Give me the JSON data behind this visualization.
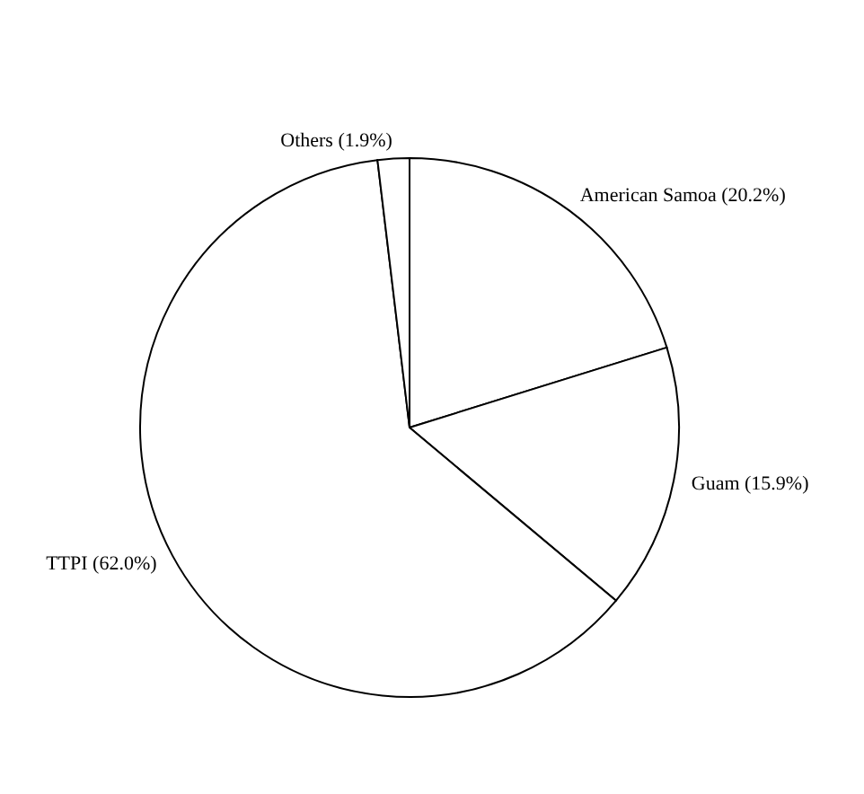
{
  "chart_data": {
    "type": "pie",
    "categories": [
      "American Samoa",
      "Guam",
      "TTPI",
      "Others"
    ],
    "values": [
      20.2,
      15.9,
      62.0,
      1.9
    ],
    "value_labels": [
      "(20.2%)",
      "(15.9%)",
      "(62.0%)",
      "(1.9%)"
    ],
    "colors": [
      "#ffffff",
      "#ffffff",
      "#ffffff",
      "#ffffff"
    ],
    "legend": false
  }
}
